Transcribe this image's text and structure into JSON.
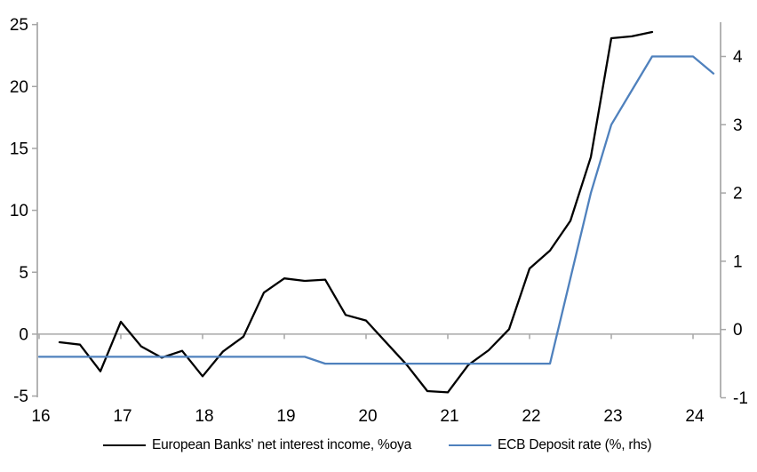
{
  "chart_data": {
    "type": "line",
    "title": "",
    "background": "#ffffff",
    "axis_color": "#a6a6a6",
    "zero_line": {
      "show": true,
      "value": 0,
      "axis": "left"
    },
    "x_axis": {
      "min": 16,
      "max": 24.35,
      "ticks": [
        16,
        17,
        18,
        19,
        20,
        21,
        22,
        23,
        24
      ],
      "tick_labels": [
        "16",
        "17",
        "18",
        "19",
        "20",
        "21",
        "22",
        "23",
        "24"
      ]
    },
    "left_axis": {
      "min": -5,
      "max": 25.2,
      "ticks": [
        25,
        20,
        15,
        10,
        5,
        0,
        -5
      ],
      "tick_labels": [
        "25",
        "20",
        "15",
        "10",
        "5",
        "0",
        "-5"
      ]
    },
    "right_axis": {
      "min": -1,
      "max": 4.5,
      "ticks": [
        4,
        3,
        2,
        1,
        0,
        -1
      ],
      "tick_labels": [
        "4",
        "3",
        "2",
        "1",
        "0",
        "-1"
      ]
    },
    "legend_position": "bottom",
    "series": [
      {
        "name": "European Banks' net interest income, %oya",
        "axis": "left",
        "color": "#000000",
        "x": [
          16.25,
          16.5,
          16.75,
          17.0,
          17.25,
          17.5,
          17.75,
          18.0,
          18.25,
          18.5,
          18.75,
          19.0,
          19.25,
          19.5,
          19.75,
          20.0,
          20.25,
          20.5,
          20.75,
          21.0,
          21.25,
          21.5,
          21.75,
          22.0,
          22.25,
          22.5,
          22.75,
          23.0,
          23.25,
          23.5
        ],
        "y": [
          -0.65,
          -0.85,
          -3.0,
          1.0,
          -1.0,
          -1.9,
          -1.35,
          -3.4,
          -1.4,
          -0.2,
          3.35,
          4.5,
          4.3,
          4.4,
          1.55,
          1.1,
          -0.7,
          -2.5,
          -4.6,
          -4.7,
          -2.5,
          -1.3,
          0.4,
          5.3,
          6.75,
          9.15,
          14.3,
          23.9,
          24.05,
          24.4
        ]
      },
      {
        "name": "ECB Deposit rate (%, rhs)",
        "axis": "right",
        "color": "#4f81bd",
        "x": [
          16.0,
          16.25,
          16.5,
          16.75,
          17.0,
          17.25,
          17.5,
          17.75,
          18.0,
          18.25,
          18.5,
          18.75,
          19.0,
          19.25,
          19.5,
          19.75,
          20.0,
          20.25,
          20.5,
          20.75,
          21.0,
          21.25,
          21.5,
          21.75,
          22.0,
          22.25,
          22.5,
          22.75,
          23.0,
          23.25,
          23.5,
          23.75,
          24.0,
          24.25
        ],
        "y": [
          -0.4,
          -0.4,
          -0.4,
          -0.4,
          -0.4,
          -0.4,
          -0.4,
          -0.4,
          -0.4,
          -0.4,
          -0.4,
          -0.4,
          -0.4,
          -0.4,
          -0.5,
          -0.5,
          -0.5,
          -0.5,
          -0.5,
          -0.5,
          -0.5,
          -0.5,
          -0.5,
          -0.5,
          -0.5,
          -0.5,
          0.75,
          2.0,
          3.0,
          3.5,
          4.0,
          4.0,
          4.0,
          3.75
        ]
      }
    ]
  }
}
